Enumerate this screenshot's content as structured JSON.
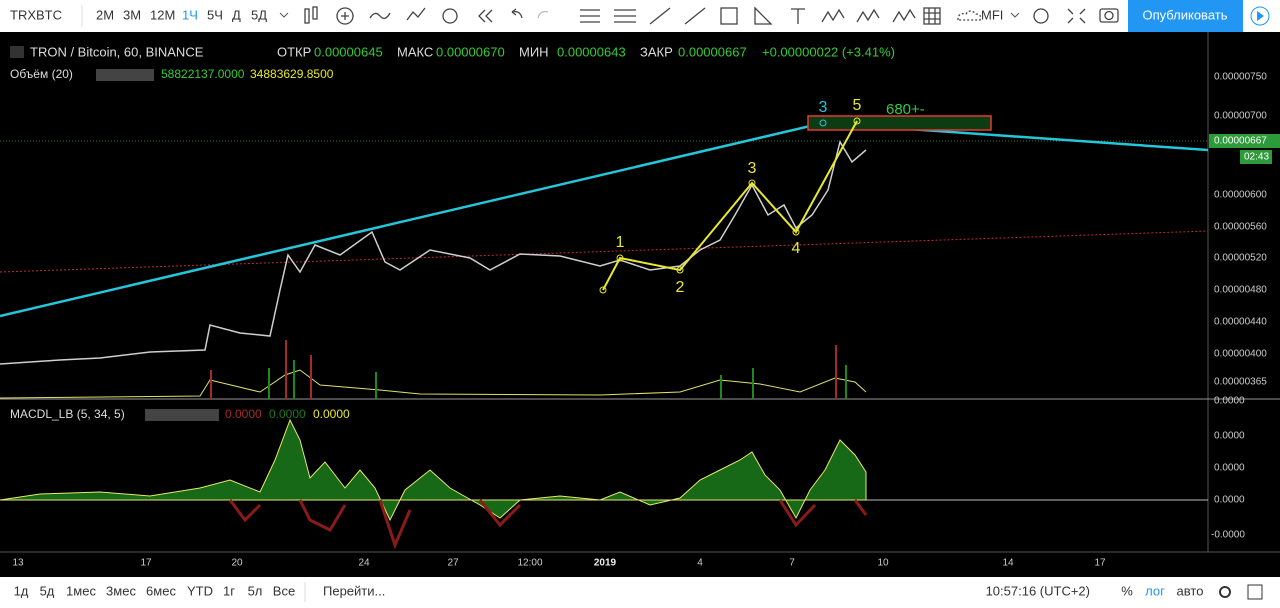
{
  "toolbar": {
    "symbol": "TRXBTC",
    "intervals": [
      "2М",
      "3М",
      "12М",
      "1Ч",
      "5Ч",
      "Д",
      "5Д"
    ],
    "indicator": "MFI",
    "publish": "Опубликовать"
  },
  "legend": {
    "title": "TRON / Bitcoin, 60, BINANCE",
    "open_label": "ОТКР",
    "open": "0.00000645",
    "high_label": "МАКС",
    "high": "0.00000670",
    "low_label": "МИН",
    "low": "0.00000643",
    "close_label": "ЗАКР",
    "close": "0.00000667",
    "change": "+0.00000022 (+3.41%)"
  },
  "volume": {
    "name": "Объём (20)",
    "values": [
      "58822137.0000",
      "34883629.8500"
    ]
  },
  "macd": {
    "name": "MACDL_LB (5, 34, 5)",
    "values": [
      "0.0000",
      "0.0000",
      "0.0000"
    ]
  },
  "price_axis": {
    "labels": [
      "0.00000750",
      "0.00000700",
      "0.00000600",
      "0.00000560",
      "0.00000520",
      "0.00000480",
      "0.00000440",
      "0.00000400",
      "0.00000365",
      "0.0000"
    ],
    "last_price": "0.00000667",
    "countdown": "02:43"
  },
  "macd_axis": [
    "0.0000",
    "0.0000",
    "0.0000",
    "-0.0000"
  ],
  "time_axis": [
    "13",
    "17",
    "20",
    "24",
    "27",
    "12:00",
    "2019",
    "4",
    "7",
    "10",
    "14",
    "17"
  ],
  "annotations": {
    "wave_a": [
      "3",
      "5"
    ],
    "target": "680+-",
    "wave_b": [
      "1",
      "2",
      "3",
      "4"
    ]
  },
  "bottom_bar": {
    "ranges": [
      "1д",
      "5д",
      "1мес",
      "3мес",
      "6мес",
      "YTD",
      "1г",
      "5л",
      "Все"
    ],
    "goto": "Перейти...",
    "clock": "10:57:16 (UTC+2)",
    "percent": "%",
    "log": "лог",
    "auto": "авто"
  }
}
